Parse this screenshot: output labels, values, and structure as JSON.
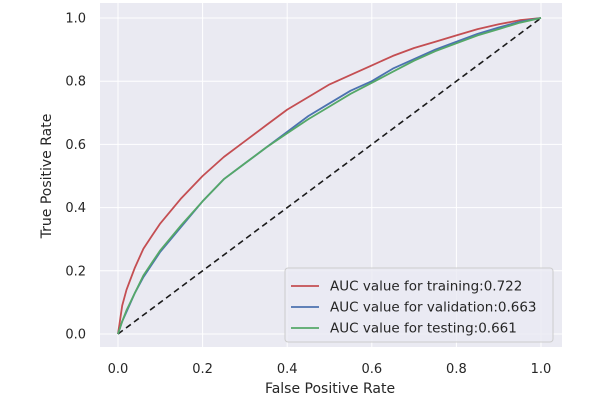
{
  "chart_data": {
    "type": "line",
    "title": "",
    "xlabel": "False Positive Rate",
    "ylabel": "True Positive Rate",
    "xlim": [
      0.0,
      1.0
    ],
    "ylim": [
      0.0,
      1.0
    ],
    "xticks": [
      "0.0",
      "0.2",
      "0.4",
      "0.6",
      "0.8",
      "1.0"
    ],
    "yticks": [
      "0.0",
      "0.2",
      "0.4",
      "0.6",
      "0.8",
      "1.0"
    ],
    "grid": true,
    "legend_position": "bottom-right",
    "series": [
      {
        "name": "AUC value for training:0.722",
        "color": "#c44e52",
        "x": [
          0.0,
          0.01,
          0.02,
          0.04,
          0.06,
          0.08,
          0.1,
          0.15,
          0.2,
          0.25,
          0.3,
          0.35,
          0.4,
          0.45,
          0.5,
          0.55,
          0.6,
          0.65,
          0.7,
          0.75,
          0.8,
          0.85,
          0.9,
          0.95,
          1.0
        ],
        "y": [
          0.0,
          0.09,
          0.14,
          0.21,
          0.27,
          0.31,
          0.35,
          0.43,
          0.5,
          0.56,
          0.61,
          0.66,
          0.71,
          0.75,
          0.79,
          0.82,
          0.85,
          0.88,
          0.905,
          0.925,
          0.945,
          0.965,
          0.98,
          0.993,
          1.0
        ]
      },
      {
        "name": "AUC value for validation:0.663",
        "color": "#4c72b0",
        "x": [
          0.0,
          0.01,
          0.02,
          0.04,
          0.06,
          0.08,
          0.1,
          0.15,
          0.2,
          0.25,
          0.3,
          0.35,
          0.4,
          0.45,
          0.5,
          0.55,
          0.6,
          0.65,
          0.7,
          0.75,
          0.8,
          0.85,
          0.9,
          0.95,
          1.0
        ],
        "y": [
          0.0,
          0.04,
          0.07,
          0.13,
          0.18,
          0.22,
          0.26,
          0.34,
          0.42,
          0.49,
          0.54,
          0.59,
          0.64,
          0.69,
          0.73,
          0.77,
          0.8,
          0.84,
          0.87,
          0.9,
          0.925,
          0.95,
          0.97,
          0.988,
          1.0
        ]
      },
      {
        "name": "AUC value for testing:0.661",
        "color": "#55a868",
        "x": [
          0.0,
          0.01,
          0.02,
          0.04,
          0.06,
          0.08,
          0.1,
          0.15,
          0.2,
          0.25,
          0.3,
          0.35,
          0.4,
          0.45,
          0.5,
          0.55,
          0.6,
          0.65,
          0.7,
          0.75,
          0.8,
          0.85,
          0.9,
          0.95,
          1.0
        ],
        "y": [
          0.0,
          0.04,
          0.075,
          0.13,
          0.185,
          0.225,
          0.265,
          0.345,
          0.42,
          0.49,
          0.54,
          0.59,
          0.635,
          0.68,
          0.72,
          0.76,
          0.795,
          0.83,
          0.865,
          0.895,
          0.92,
          0.945,
          0.965,
          0.985,
          1.0
        ]
      }
    ],
    "reference_line": {
      "x": [
        0.0,
        1.0
      ],
      "y": [
        0.0,
        1.0
      ],
      "style": "dashed",
      "color": "#1a1a1a"
    }
  },
  "colors": {
    "plot_background": "#eaeaf2",
    "grid": "#ffffff",
    "text": "#262626"
  }
}
